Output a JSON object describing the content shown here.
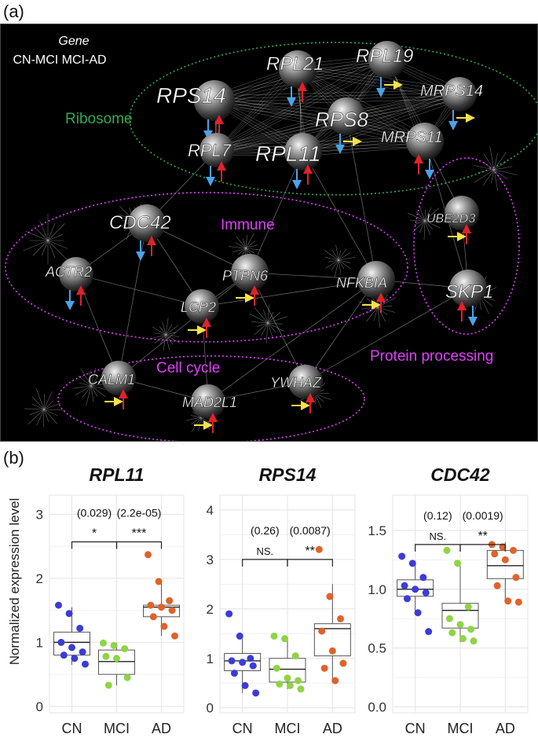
{
  "panel_a": {
    "label": "(a)",
    "legend": {
      "title": "Gene",
      "subtitle": "CN-MCI MCI-AD"
    },
    "colors": {
      "ribosome": "#34a853",
      "immune": "#e040fb",
      "cell_cycle": "#e040fb",
      "protein": "#e040fb",
      "down": "#4aa3e8",
      "up": "#e0222a",
      "flat": "#f3e24a",
      "edge": "#bdbdbd",
      "node_text": "#ffffff"
    },
    "clusters": [
      {
        "key": "ribosome",
        "label": "Ribosome"
      },
      {
        "key": "immune",
        "label": "Immune"
      },
      {
        "key": "cell_cycle",
        "label": "Cell cycle"
      },
      {
        "key": "protein",
        "label": "Protein processing"
      }
    ],
    "nodes": [
      {
        "gene": "RPS14",
        "cn_mci": "down",
        "mci_ad": "up"
      },
      {
        "gene": "RPL21",
        "cn_mci": "down",
        "mci_ad": "up"
      },
      {
        "gene": "RPL19",
        "cn_mci": "down",
        "mci_ad": "flat"
      },
      {
        "gene": "MRPS14",
        "cn_mci": "down",
        "mci_ad": "flat"
      },
      {
        "gene": "RPS8",
        "cn_mci": "down",
        "mci_ad": "flat"
      },
      {
        "gene": "MRPS11",
        "cn_mci": "up",
        "mci_ad": "down"
      },
      {
        "gene": "RPL7",
        "cn_mci": "down",
        "mci_ad": "up"
      },
      {
        "gene": "RPL11",
        "cn_mci": "down",
        "mci_ad": "up"
      },
      {
        "gene": "CDC42",
        "cn_mci": "down",
        "mci_ad": "up"
      },
      {
        "gene": "ACTR2",
        "cn_mci": "down",
        "mci_ad": "up"
      },
      {
        "gene": "PTPN6",
        "cn_mci": "flat",
        "mci_ad": "up"
      },
      {
        "gene": "LCP2",
        "cn_mci": "flat",
        "mci_ad": "up"
      },
      {
        "gene": "NFKBIA",
        "cn_mci": "flat",
        "mci_ad": "up"
      },
      {
        "gene": "UBE2D3",
        "cn_mci": "flat",
        "mci_ad": "up"
      },
      {
        "gene": "SKP1",
        "cn_mci": "up",
        "mci_ad": "down"
      },
      {
        "gene": "CALM1",
        "cn_mci": "flat",
        "mci_ad": "up"
      },
      {
        "gene": "MAD2L1",
        "cn_mci": "flat",
        "mci_ad": "up"
      },
      {
        "gene": "YWHAZ",
        "cn_mci": "flat",
        "mci_ad": "up"
      }
    ]
  },
  "panel_b": {
    "label": "(b)",
    "ylabel": "Normalized expression level",
    "colors": {
      "CN": "#3c3cd6",
      "MCI": "#8fd444",
      "AD": "#e0622a",
      "box": "#555555",
      "grid": "#e4e4e4"
    }
  },
  "chart_data": [
    {
      "type": "box",
      "title": "RPL11",
      "categories": [
        "CN",
        "MCI",
        "AD"
      ],
      "ylabel": "Normalized expression level",
      "ylim": [
        -0.1,
        3.3
      ],
      "yticks": [
        "0",
        "1",
        "2",
        "3"
      ],
      "ytick_values": [
        0,
        1,
        2,
        3
      ],
      "boxes": [
        {
          "q1": 0.8,
          "median": 1.0,
          "q3": 1.16,
          "whisker_low": 0.65,
          "whisker_high": 1.55
        },
        {
          "q1": 0.5,
          "median": 0.7,
          "q3": 0.88,
          "whisker_low": 0.33,
          "whisker_high": 0.99
        },
        {
          "q1": 1.4,
          "median": 1.55,
          "q3": 1.58,
          "whisker_low": 1.1,
          "whisker_high": 1.95
        }
      ],
      "points": {
        "CN": [
          1.58,
          1.45,
          1.22,
          1.0,
          0.92,
          0.85,
          0.8,
          0.75,
          0.66
        ],
        "MCI": [
          0.99,
          0.95,
          0.9,
          0.78,
          0.75,
          0.45,
          0.33
        ],
        "AD": [
          2.37,
          1.95,
          1.65,
          1.58,
          1.55,
          1.5,
          1.4,
          1.25,
          1.1
        ]
      },
      "comparisons": [
        {
          "pair": [
            "CN",
            "MCI"
          ],
          "pvalue": "(0.029)",
          "sig": "*"
        },
        {
          "pair": [
            "MCI",
            "AD"
          ],
          "pvalue": "(2.2e-05)",
          "sig": "***"
        }
      ],
      "bracket_y": 2.57
    },
    {
      "type": "box",
      "title": "RPS14",
      "categories": [
        "CN",
        "MCI",
        "AD"
      ],
      "ylabel": "Normalized expression level",
      "ylim": [
        -0.1,
        4.3
      ],
      "yticks": [
        "0",
        "1",
        "2",
        "3",
        "4"
      ],
      "ytick_values": [
        0,
        1,
        2,
        3,
        4
      ],
      "boxes": [
        {
          "q1": 0.75,
          "median": 0.95,
          "q3": 1.1,
          "whisker_low": 0.3,
          "whisker_high": 1.4
        },
        {
          "q1": 0.52,
          "median": 0.78,
          "q3": 1.0,
          "whisker_low": 0.38,
          "whisker_high": 1.4
        },
        {
          "q1": 1.05,
          "median": 1.6,
          "q3": 1.7,
          "whisker_low": 0.55,
          "whisker_high": 2.5
        }
      ],
      "points": {
        "CN": [
          1.9,
          1.45,
          1.0,
          0.95,
          0.92,
          0.85,
          0.7,
          0.45,
          0.3
        ],
        "MCI": [
          1.45,
          1.4,
          1.05,
          0.8,
          0.6,
          0.55,
          0.48,
          0.45,
          0.38
        ],
        "AD": [
          3.2,
          2.25,
          1.8,
          1.55,
          1.15,
          0.9,
          0.8,
          0.55
        ]
      },
      "comparisons": [
        {
          "pair": [
            "CN",
            "MCI"
          ],
          "pvalue": "(0.26)",
          "sig": "NS."
        },
        {
          "pair": [
            "MCI",
            "AD"
          ],
          "pvalue": "(0.0087)",
          "sig": "**"
        }
      ],
      "bracket_y": 3.0
    },
    {
      "type": "box",
      "title": "CDC42",
      "categories": [
        "CN",
        "MCI",
        "AD"
      ],
      "ylabel": "Normalized expression level",
      "ylim": [
        -0.05,
        1.8
      ],
      "yticks": [
        "0.0",
        "0.5",
        "1.0",
        "1.5"
      ],
      "ytick_values": [
        0,
        0.5,
        1.0,
        1.5
      ],
      "boxes": [
        {
          "q1": 0.94,
          "median": 1.0,
          "q3": 1.08,
          "whisker_low": 0.8,
          "whisker_high": 1.23
        },
        {
          "q1": 0.67,
          "median": 0.82,
          "q3": 0.88,
          "whisker_low": 0.55,
          "whisker_high": 1.2
        },
        {
          "q1": 1.09,
          "median": 1.2,
          "q3": 1.33,
          "whisker_low": 0.9,
          "whisker_high": 1.4
        }
      ],
      "points": {
        "CN": [
          1.28,
          1.22,
          1.1,
          1.03,
          1.0,
          0.97,
          0.92,
          0.8,
          0.64
        ],
        "MCI": [
          1.33,
          1.22,
          0.85,
          0.75,
          0.7,
          0.66,
          0.63,
          0.58,
          0.56
        ],
        "AD": [
          1.38,
          1.36,
          1.33,
          1.3,
          1.25,
          1.1,
          1.03,
          0.9,
          0.89
        ]
      },
      "comparisons": [
        {
          "pair": [
            "CN",
            "MCI"
          ],
          "pvalue": "(0.12)",
          "sig": "NS."
        },
        {
          "pair": [
            "MCI",
            "AD"
          ],
          "pvalue": "(0.0019)",
          "sig": "**"
        }
      ],
      "bracket_y": 1.38
    }
  ]
}
